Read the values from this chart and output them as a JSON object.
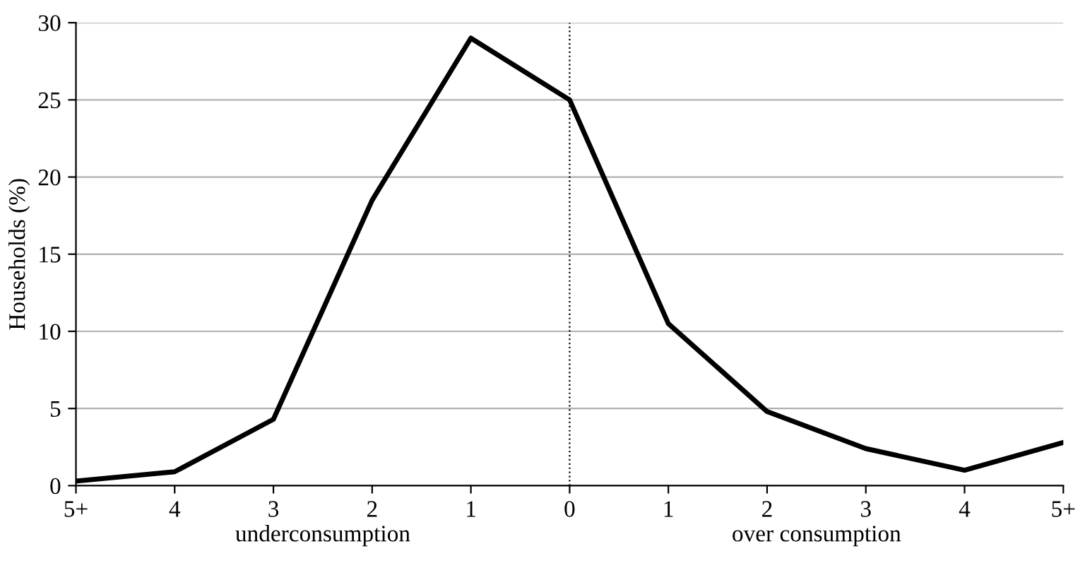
{
  "chart_data": {
    "type": "line",
    "ylabel": "Households (%)",
    "x": [
      -5,
      -4,
      -3,
      -2,
      -1,
      0,
      1,
      2,
      3,
      4,
      5
    ],
    "series": [
      {
        "color": "#000000",
        "values": [
          0.3,
          0.9,
          4.3,
          18.5,
          29.0,
          25.0,
          10.5,
          4.8,
          2.4,
          1.0,
          2.8
        ]
      }
    ],
    "xlim": [
      -5,
      5
    ],
    "xticks": [
      {
        "value": -5,
        "label": "5+"
      },
      {
        "value": -4,
        "label": "4"
      },
      {
        "value": -3,
        "label": "3"
      },
      {
        "value": -2,
        "label": "2"
      },
      {
        "value": -1,
        "label": "1"
      },
      0,
      1,
      2,
      3,
      4,
      {
        "value": 5,
        "label": "5+"
      }
    ],
    "ylim": [
      0,
      30
    ],
    "yticks": [
      0,
      5,
      10,
      15,
      20,
      25,
      30
    ],
    "grid": "y",
    "legend": false,
    "marker": "none",
    "line_style": "solid",
    "ref_lines": [
      {
        "axis": "x",
        "value": 0,
        "color": "#000000",
        "line_style": "dotted"
      }
    ],
    "annotations": [
      "underconsumption",
      "over consumption"
    ]
  }
}
